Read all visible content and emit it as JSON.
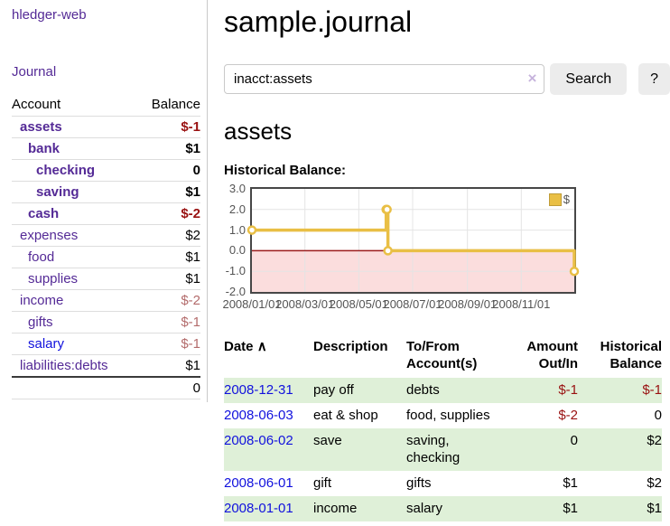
{
  "brand": "hledger-web",
  "nav": {
    "journal_label": "Journal"
  },
  "accounts_table": {
    "headers": [
      "Account",
      "Balance"
    ],
    "rows": [
      {
        "name": "assets",
        "balance": "$-1",
        "depth": 1,
        "bold": true,
        "neg": "strong"
      },
      {
        "name": "bank",
        "balance": "$1",
        "depth": 2,
        "bold": true,
        "neg": "none"
      },
      {
        "name": "checking",
        "balance": "0",
        "depth": 3,
        "bold": true,
        "neg": "none"
      },
      {
        "name": "saving",
        "balance": "$1",
        "depth": 3,
        "bold": true,
        "neg": "none"
      },
      {
        "name": "cash",
        "balance": "$-2",
        "depth": 2,
        "bold": true,
        "neg": "strong"
      },
      {
        "name": "expenses",
        "balance": "$2",
        "depth": 1,
        "bold": false,
        "neg": "none"
      },
      {
        "name": "food",
        "balance": "$1",
        "depth": 2,
        "bold": false,
        "neg": "none"
      },
      {
        "name": "supplies",
        "balance": "$1",
        "depth": 2,
        "bold": false,
        "neg": "none"
      },
      {
        "name": "income",
        "balance": "$-2",
        "depth": 1,
        "bold": false,
        "neg": "soft"
      },
      {
        "name": "gifts",
        "balance": "$-1",
        "depth": 2,
        "bold": false,
        "neg": "soft"
      },
      {
        "name": "salary",
        "balance": "$-1",
        "depth": 2,
        "bold": false,
        "neg": "soft",
        "link_color": "blue"
      },
      {
        "name": "liabilities:debts",
        "balance": "$1",
        "depth": 1,
        "bold": false,
        "neg": "none"
      }
    ],
    "total": "0"
  },
  "header": {
    "title": "sample.journal"
  },
  "search": {
    "value": "inacct:assets",
    "clear_label": "×",
    "button_label": "Search",
    "help_label": "?"
  },
  "account_page": {
    "heading": "assets",
    "chart_label": "Historical Balance:"
  },
  "chart_data": {
    "type": "line",
    "steps": true,
    "title": "Historical Balance",
    "series": [
      {
        "name": "$",
        "color": "#e9bf45",
        "points": [
          [
            "2008-01-01",
            1
          ],
          [
            "2008-06-01",
            2
          ],
          [
            "2008-06-02",
            2
          ],
          [
            "2008-06-03",
            0
          ],
          [
            "2008-12-31",
            -1
          ]
        ]
      }
    ],
    "xlim": [
      "2008-01-01",
      "2008-12-31"
    ],
    "ylim": [
      -2,
      3
    ],
    "yticks": [
      "3.0",
      "2.0",
      "1.0",
      "0.0",
      "-1.0",
      "-2.0"
    ],
    "xticks": [
      {
        "label": "2008/01/01",
        "date": "2008-01-01"
      },
      {
        "label": "2008/03/01",
        "date": "2008-03-01"
      },
      {
        "label": "2008/05/01",
        "date": "2008-05-01"
      },
      {
        "label": "2008/07/01",
        "date": "2008-07-01"
      },
      {
        "label": "2008/09/01",
        "date": "2008-09-01"
      },
      {
        "label": "2008/11/01",
        "date": "2008-11-01"
      }
    ],
    "legend_position": "top-right",
    "grid": true,
    "grid_color": "#e4e4e4",
    "zero_line_color": "#9b1c1c",
    "negative_region_color": "#fbdddd",
    "border_color": "#474747"
  },
  "register_table": {
    "columns": [
      {
        "label": "Date",
        "sort_indicator": "∧"
      },
      {
        "label": "Description"
      },
      {
        "label": "To/From Account(s)"
      },
      {
        "label": "Amount Out/In"
      },
      {
        "label": "Historical Balance"
      }
    ],
    "rows": [
      {
        "date": "2008-12-31",
        "description": "pay off",
        "accounts": "debts",
        "amount": "$-1",
        "balance": "$-1",
        "amount_negative": true,
        "balance_negative": true
      },
      {
        "date": "2008-06-03",
        "description": "eat & shop",
        "accounts": "food, supplies",
        "amount": "$-2",
        "balance": "0",
        "amount_negative": true,
        "balance_negative": false
      },
      {
        "date": "2008-06-02",
        "description": "save",
        "accounts": "saving,\nchecking",
        "amount": "0",
        "balance": "$2",
        "amount_negative": false,
        "balance_negative": false
      },
      {
        "date": "2008-06-01",
        "description": "gift",
        "accounts": "gifts",
        "amount": "$1",
        "balance": "$2",
        "amount_negative": false,
        "balance_negative": false
      },
      {
        "date": "2008-01-01",
        "description": "income",
        "accounts": "salary",
        "amount": "$1",
        "balance": "$1",
        "amount_negative": false,
        "balance_negative": false
      }
    ]
  },
  "colors": {
    "link_purple": "#542a96",
    "link_blue": "#1111dd",
    "negative_strong": "#991111",
    "negative_soft": "#b36b6b",
    "row_stripe_green": "#dff0d8",
    "button_gray": "#ececec"
  }
}
